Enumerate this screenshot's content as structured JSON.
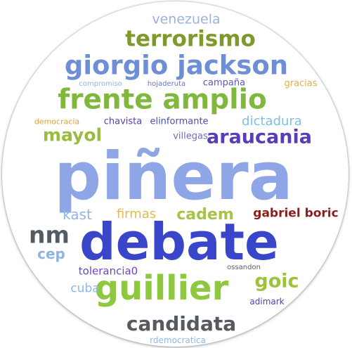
{
  "words": [
    {
      "key": "venezuela",
      "text": "venezuela",
      "color": "#9bb3dc"
    },
    {
      "key": "terrorismo",
      "text": "terrorismo",
      "color": "#7d9a2a"
    },
    {
      "key": "giorgio",
      "text": "giorgio jackson",
      "color": "#6e8fd6"
    },
    {
      "key": "compromiso",
      "text": "compromiso",
      "color": "#8fb6d9"
    },
    {
      "key": "hojaderuta",
      "text": "hojaderuta",
      "color": "#6a73c4"
    },
    {
      "key": "campana",
      "text": "campaña",
      "color": "#5a58b6"
    },
    {
      "key": "gracias",
      "text": "gracias",
      "color": "#d9b14a"
    },
    {
      "key": "frente",
      "text": "frente amplio",
      "color": "#7fb83d"
    },
    {
      "key": "democracia",
      "text": "democracia",
      "color": "#e0a23a"
    },
    {
      "key": "chavista",
      "text": "chavista",
      "color": "#5b3fb2"
    },
    {
      "key": "elinformante",
      "text": "elinformante",
      "color": "#4b4fb0"
    },
    {
      "key": "dictadura",
      "text": "dictadura",
      "color": "#7cc0e8"
    },
    {
      "key": "mayol",
      "text": "mayol",
      "color": "#9bbb3f"
    },
    {
      "key": "villegas",
      "text": "villegas",
      "color": "#6c6fbf"
    },
    {
      "key": "araucania",
      "text": "araucania",
      "color": "#5a3cb8"
    },
    {
      "key": "pinera",
      "text": "piñera",
      "color": "#8ea6e6"
    },
    {
      "key": "kast",
      "text": "kast",
      "color": "#8fb7e0"
    },
    {
      "key": "firmas",
      "text": "firmas",
      "color": "#e2b955"
    },
    {
      "key": "cadem",
      "text": "cadem",
      "color": "#a6c44a"
    },
    {
      "key": "gabriel",
      "text": "gabriel boric",
      "color": "#8b1d1d"
    },
    {
      "key": "nm",
      "text": "nm",
      "color": "#555b63"
    },
    {
      "key": "debate",
      "text": "debate",
      "color": "#3a46c9"
    },
    {
      "key": "cep",
      "text": "cep",
      "color": "#8fb5df"
    },
    {
      "key": "ossandon",
      "text": "ossandon",
      "color": "#5c5f66"
    },
    {
      "key": "tolerancia",
      "text": "tolerancia0",
      "color": "#6a48c2"
    },
    {
      "key": "goic",
      "text": "goic",
      "color": "#9ec23a"
    },
    {
      "key": "guillier",
      "text": "guillier",
      "color": "#8dc83f"
    },
    {
      "key": "cuba",
      "text": "cuba",
      "color": "#8fb8e6"
    },
    {
      "key": "adimark",
      "text": "adimark",
      "color": "#5b3ab4"
    },
    {
      "key": "candidata",
      "text": "candidata",
      "color": "#555a60"
    },
    {
      "key": "rdemocratica",
      "text": "rdemocratica",
      "color": "#8fb8e6"
    }
  ]
}
